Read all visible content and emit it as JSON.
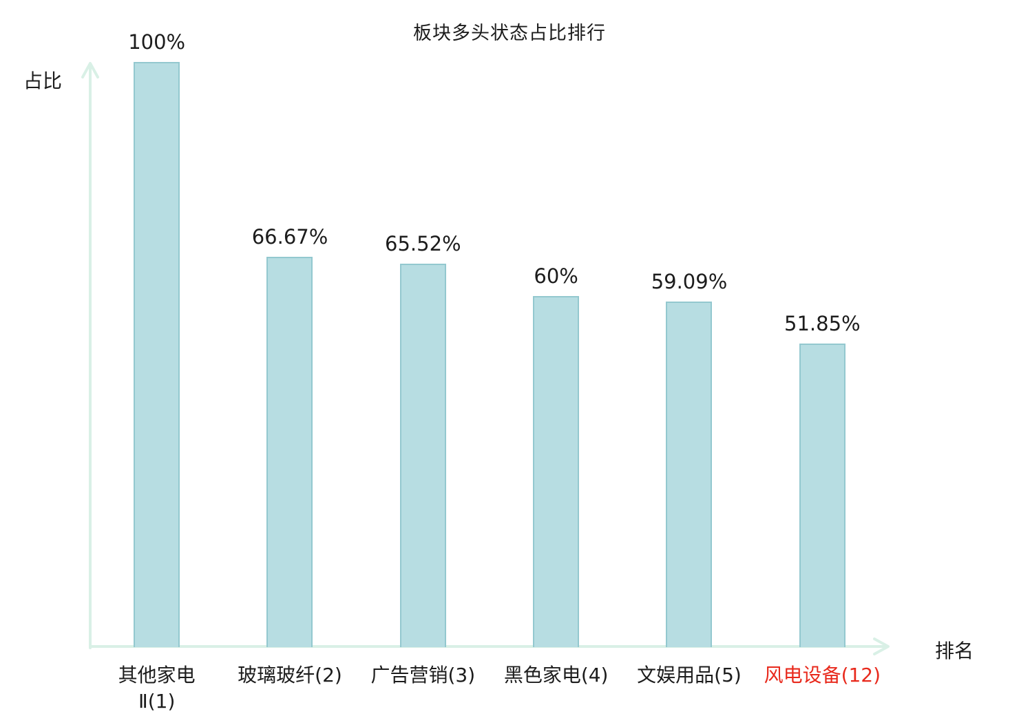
{
  "chart_data": {
    "type": "bar",
    "title": "板块多头状态占比排行",
    "xlabel": "排名",
    "ylabel": "占比",
    "ylim": [
      0,
      100
    ],
    "grid": false,
    "legend": "none",
    "bar_color": "#b7dde2",
    "bar_border_color": "#93c8cf",
    "axis_color": "#d9f0e6",
    "text_color": "#1c1c1c",
    "highlight_color": "#e8291c",
    "categories": [
      "其他家电\nⅡ(1)",
      "玻璃玻纤(2)",
      "广告营销(3)",
      "黑色家电(4)",
      "文娱用品(5)",
      "风电设备(12)"
    ],
    "values": [
      100,
      66.67,
      65.52,
      60,
      59.09,
      51.85
    ],
    "value_labels": [
      "100%",
      "66.67%",
      "65.52%",
      "60%",
      "59.09%",
      "51.85%"
    ],
    "highlighted_category_index": 5
  }
}
